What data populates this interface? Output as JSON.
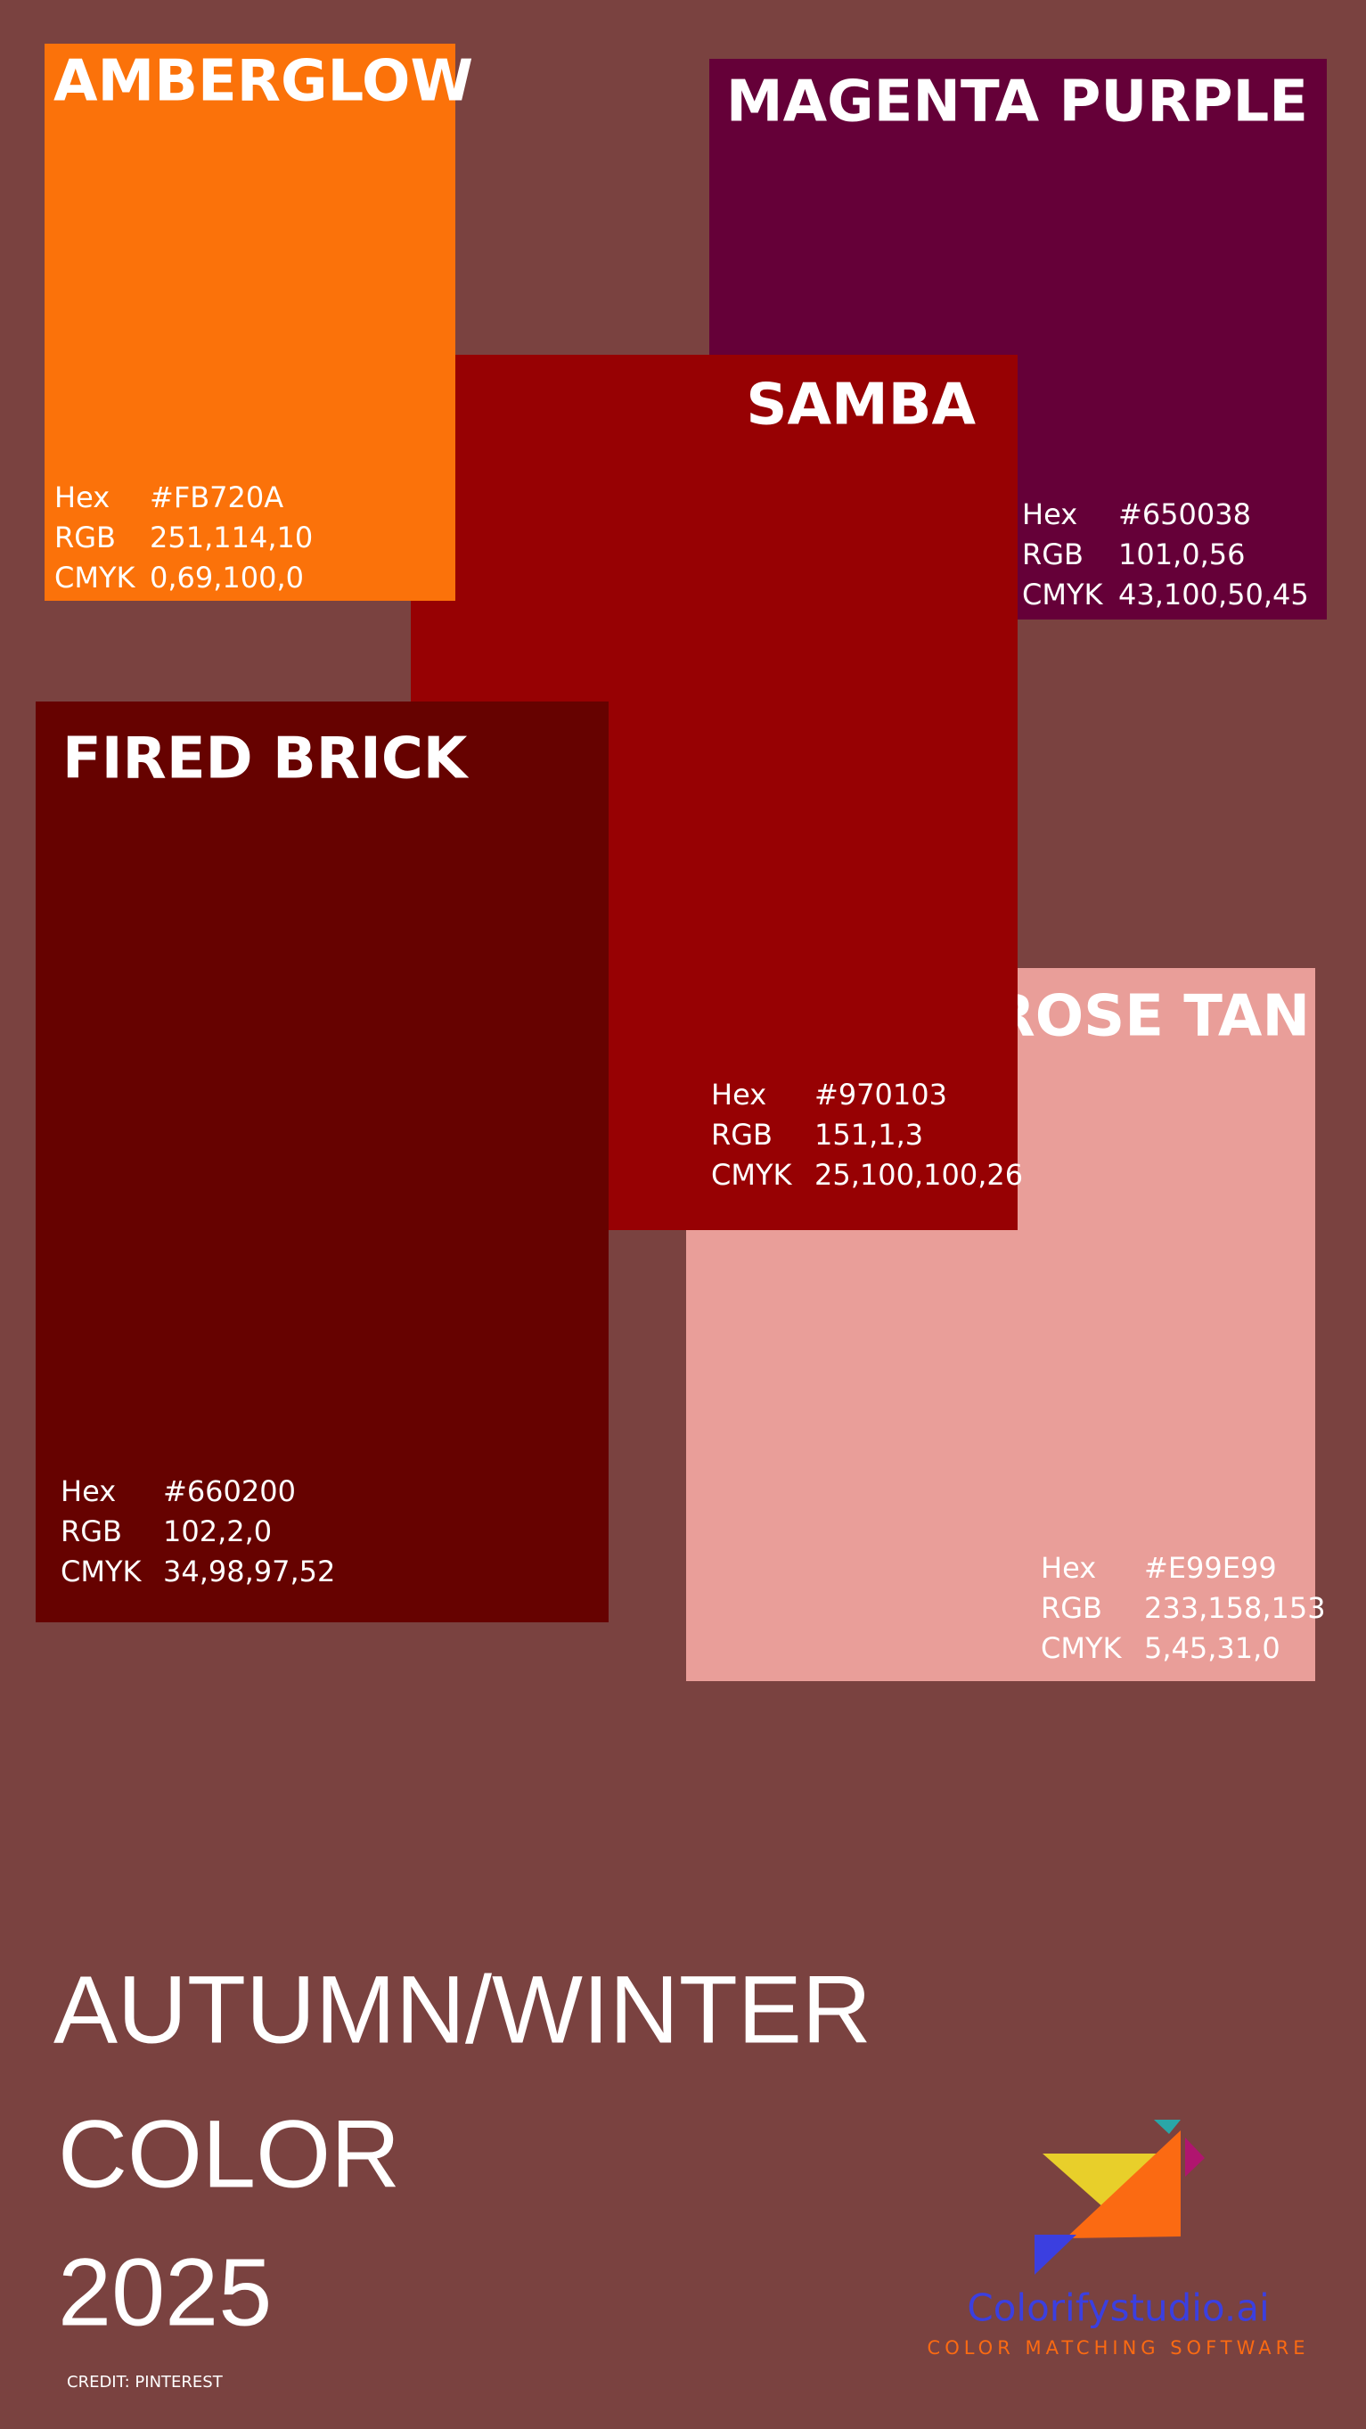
{
  "swatches": [
    {
      "name": "MAGENTA PURPLE",
      "color": "#650038",
      "hex_label": "Hex",
      "hex": "#650038",
      "rgb_label": "RGB",
      "rgb": "101,0,56",
      "cmyk_label": "CMYK",
      "cmyk": "43,100,50,45"
    },
    {
      "name": "ROSE TAN",
      "color": "#e99e99",
      "hex_label": "Hex",
      "hex": "#E99E99",
      "rgb_label": "RGB",
      "rgb": "233,158,153",
      "cmyk_label": "CMYK",
      "cmyk": "5,45,31,0"
    },
    {
      "name": "SAMBA",
      "color": "#970103",
      "hex_label": "Hex",
      "hex": "#970103",
      "rgb_label": "RGB",
      "rgb": "151,1,3",
      "cmyk_label": "CMYK",
      "cmyk": "25,100,100,26"
    },
    {
      "name": "AMBERGLOW",
      "color": "#fb720a",
      "hex_label": "Hex",
      "hex": "#FB720A",
      "rgb_label": "RGB",
      "rgb": "251,114,10",
      "cmyk_label": "CMYK",
      "cmyk": "0,69,100,0"
    },
    {
      "name": "FIRED BRICK",
      "color": "#660200",
      "hex_label": "Hex",
      "hex": "#660200",
      "rgb_label": "RGB",
      "rgb": "102,2,0",
      "cmyk_label": "CMYK",
      "cmyk": "34,98,97,52"
    }
  ],
  "title": {
    "lines": [
      "AUTUMN/WINTER",
      "COLOR",
      "2025"
    ]
  },
  "credit": "CREDIT: PINTEREST",
  "logo": {
    "name": "Colorifystudio.ai",
    "tagline": "COLOR MATCHING SOFTWARE"
  }
}
